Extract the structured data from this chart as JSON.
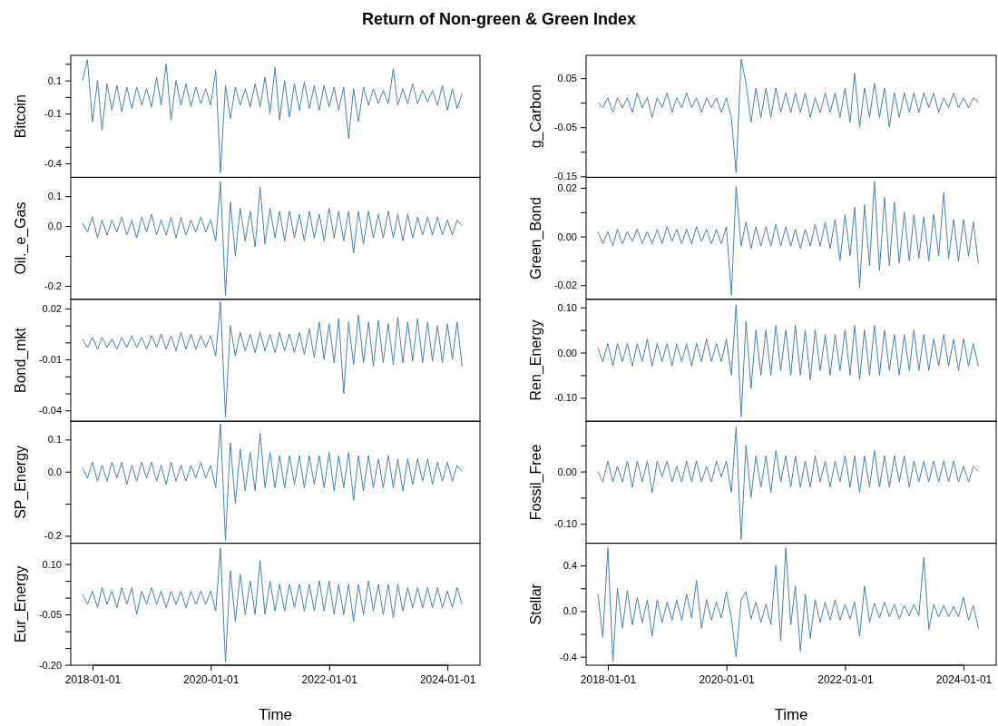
{
  "chart_data": [
    {
      "type": "line",
      "title": "Return of Non-green & Green Index",
      "ylabel": "Bitcoin",
      "tick_labels": "y",
      "xlim": [
        "2017-08-20",
        "2024-07-20"
      ],
      "ylim": [
        -0.484,
        0.251
      ],
      "yticks": [
        {
          "value": 0.2,
          "label": null
        },
        0.1,
        {
          "value": 0,
          "label": null
        },
        -0.1,
        {
          "value": -0.2,
          "label": null
        },
        {
          "value": -0.3,
          "label": null
        },
        -0.4
      ],
      "x": [
        "2017-11",
        "2017-12",
        "2018-01",
        "2018-02",
        "2018-03",
        "2018-04",
        "2018-05",
        "2018-06",
        "2018-07",
        "2018-08",
        "2018-09",
        "2018-10",
        "2018-11",
        "2018-12",
        "2019-01",
        "2019-02",
        "2019-03",
        "2019-04",
        "2019-05",
        "2019-06",
        "2019-07",
        "2019-08",
        "2019-09",
        "2019-10",
        "2019-11",
        "2019-12",
        "2020-01",
        "2020-02",
        "2020-03",
        "2020-04",
        "2020-05",
        "2020-06",
        "2020-07",
        "2020-08",
        "2020-09",
        "2020-10",
        "2020-11",
        "2020-12",
        "2021-01",
        "2021-02",
        "2021-03",
        "2021-04",
        "2021-05",
        "2021-06",
        "2021-07",
        "2021-08",
        "2021-09",
        "2021-10",
        "2021-11",
        "2021-12",
        "2022-01",
        "2022-02",
        "2022-03",
        "2022-04",
        "2022-05",
        "2022-06",
        "2022-07",
        "2022-08",
        "2022-09",
        "2022-10",
        "2022-11",
        "2022-12",
        "2023-01",
        "2023-02",
        "2023-03",
        "2023-04",
        "2023-05",
        "2023-06",
        "2023-07",
        "2023-08",
        "2023-09",
        "2023-10",
        "2023-11",
        "2023-12",
        "2024-01",
        "2024-02",
        "2024-03",
        "2024-04"
      ],
      "series": [
        {
          "color": "#4682b4",
          "values": [
            0.1,
            0.225,
            -0.15,
            0.1,
            -0.2,
            0.08,
            -0.08,
            0.07,
            -0.09,
            0.06,
            -0.07,
            0.06,
            -0.05,
            0.05,
            -0.06,
            0.12,
            -0.05,
            0.2,
            -0.14,
            0.1,
            -0.05,
            0.08,
            -0.06,
            0.06,
            -0.04,
            0.05,
            -0.05,
            0.16,
            -0.456,
            0.07,
            -0.13,
            0.06,
            -0.05,
            0.05,
            -0.06,
            0.08,
            -0.06,
            0.12,
            -0.1,
            0.18,
            -0.14,
            0.1,
            -0.12,
            0.08,
            -0.08,
            0.09,
            -0.07,
            0.07,
            -0.08,
            0.07,
            -0.06,
            0.06,
            -0.08,
            0.06,
            -0.25,
            0.05,
            -0.15,
            0.06,
            -0.05,
            0.05,
            -0.04,
            0.04,
            -0.04,
            0.17,
            -0.05,
            0.05,
            -0.04,
            0.08,
            -0.04,
            0.04,
            -0.03,
            0.04,
            -0.05,
            0.07,
            -0.08,
            0.05,
            -0.07,
            0.02
          ]
        }
      ]
    },
    {
      "type": "line",
      "ylabel": "g_Carbon",
      "tick_labels": "y",
      "xlim": [
        "2017-08-20",
        "2024-07-20"
      ],
      "ylim": [
        -0.152,
        0.0965
      ],
      "yticks": [
        0.05,
        {
          "value": 0,
          "label": null
        },
        -0.05,
        {
          "value": -0.1,
          "label": null
        },
        -0.15
      ],
      "x": [
        "2017-11",
        "2017-12",
        "2018-01",
        "2018-02",
        "2018-03",
        "2018-04",
        "2018-05",
        "2018-06",
        "2018-07",
        "2018-08",
        "2018-09",
        "2018-10",
        "2018-11",
        "2018-12",
        "2019-01",
        "2019-02",
        "2019-03",
        "2019-04",
        "2019-05",
        "2019-06",
        "2019-07",
        "2019-08",
        "2019-09",
        "2019-10",
        "2019-11",
        "2019-12",
        "2020-01",
        "2020-02",
        "2020-03",
        "2020-04",
        "2020-05",
        "2020-06",
        "2020-07",
        "2020-08",
        "2020-09",
        "2020-10",
        "2020-11",
        "2020-12",
        "2021-01",
        "2021-02",
        "2021-03",
        "2021-04",
        "2021-05",
        "2021-06",
        "2021-07",
        "2021-08",
        "2021-09",
        "2021-10",
        "2021-11",
        "2021-12",
        "2022-01",
        "2022-02",
        "2022-03",
        "2022-04",
        "2022-05",
        "2022-06",
        "2022-07",
        "2022-08",
        "2022-09",
        "2022-10",
        "2022-11",
        "2022-12",
        "2023-01",
        "2023-02",
        "2023-03",
        "2023-04",
        "2023-05",
        "2023-06",
        "2023-07",
        "2023-08",
        "2023-09",
        "2023-10",
        "2023-11",
        "2023-12",
        "2024-01",
        "2024-02",
        "2024-03",
        "2024-04"
      ],
      "series": [
        {
          "color": "#4682b4",
          "values": [
            0.0,
            -0.01,
            0.01,
            -0.02,
            0.01,
            -0.01,
            0.01,
            -0.02,
            0.02,
            -0.01,
            0.01,
            -0.03,
            0.01,
            -0.01,
            0.02,
            -0.02,
            0.01,
            -0.01,
            0.02,
            -0.01,
            0.01,
            -0.02,
            0.01,
            -0.01,
            0.01,
            -0.02,
            0.01,
            -0.03,
            -0.143,
            0.089,
            0.04,
            -0.04,
            0.03,
            -0.03,
            0.03,
            -0.03,
            0.03,
            -0.02,
            0.02,
            -0.02,
            0.02,
            -0.02,
            0.02,
            -0.03,
            0.01,
            -0.02,
            0.02,
            -0.02,
            0.02,
            -0.03,
            0.03,
            -0.04,
            0.06,
            -0.05,
            0.03,
            -0.03,
            0.04,
            -0.03,
            0.03,
            -0.05,
            0.02,
            -0.03,
            0.02,
            -0.02,
            0.02,
            -0.02,
            0.02,
            -0.01,
            0.02,
            -0.02,
            0.01,
            -0.01,
            0.02,
            -0.01,
            0.01,
            -0.01,
            0.01,
            0.0
          ]
        }
      ]
    },
    {
      "type": "line",
      "ylabel": "Oil._e_Gas",
      "tick_labels": "y",
      "xlim": [
        "2017-08-20",
        "2024-07-20"
      ],
      "ylim": [
        -0.245,
        0.163
      ],
      "yticks": [
        0.1,
        {
          "value": 0,
          "label": "0.0"
        },
        {
          "value": -0.1,
          "label": null
        },
        -0.2
      ],
      "x": [
        "2017-11",
        "2017-12",
        "2018-01",
        "2018-02",
        "2018-03",
        "2018-04",
        "2018-05",
        "2018-06",
        "2018-07",
        "2018-08",
        "2018-09",
        "2018-10",
        "2018-11",
        "2018-12",
        "2019-01",
        "2019-02",
        "2019-03",
        "2019-04",
        "2019-05",
        "2019-06",
        "2019-07",
        "2019-08",
        "2019-09",
        "2019-10",
        "2019-11",
        "2019-12",
        "2020-01",
        "2020-02",
        "2020-03",
        "2020-04",
        "2020-05",
        "2020-06",
        "2020-07",
        "2020-08",
        "2020-09",
        "2020-10",
        "2020-11",
        "2020-12",
        "2021-01",
        "2021-02",
        "2021-03",
        "2021-04",
        "2021-05",
        "2021-06",
        "2021-07",
        "2021-08",
        "2021-09",
        "2021-10",
        "2021-11",
        "2021-12",
        "2022-01",
        "2022-02",
        "2022-03",
        "2022-04",
        "2022-05",
        "2022-06",
        "2022-07",
        "2022-08",
        "2022-09",
        "2022-10",
        "2022-11",
        "2022-12",
        "2023-01",
        "2023-02",
        "2023-03",
        "2023-04",
        "2023-05",
        "2023-06",
        "2023-07",
        "2023-08",
        "2023-09",
        "2023-10",
        "2023-11",
        "2023-12",
        "2024-01",
        "2024-02",
        "2024-03",
        "2024-04"
      ],
      "series": [
        {
          "color": "#4682b4",
          "values": [
            0.01,
            -0.02,
            0.03,
            -0.04,
            0.02,
            -0.03,
            0.02,
            -0.02,
            0.03,
            -0.03,
            0.02,
            -0.04,
            0.03,
            -0.02,
            0.04,
            -0.03,
            0.02,
            -0.03,
            0.03,
            -0.04,
            0.03,
            -0.03,
            0.02,
            -0.02,
            0.03,
            -0.02,
            0.02,
            -0.05,
            0.149,
            -0.232,
            0.08,
            -0.1,
            0.06,
            -0.05,
            0.05,
            -0.07,
            0.13,
            -0.06,
            0.06,
            -0.04,
            0.05,
            -0.05,
            0.05,
            -0.04,
            0.04,
            -0.05,
            0.05,
            -0.04,
            0.04,
            -0.05,
            0.06,
            -0.04,
            0.05,
            -0.05,
            0.05,
            -0.09,
            0.05,
            -0.06,
            0.05,
            -0.04,
            0.04,
            -0.04,
            0.05,
            -0.04,
            0.04,
            -0.05,
            0.04,
            -0.04,
            0.03,
            -0.03,
            0.03,
            -0.03,
            0.03,
            -0.03,
            0.02,
            -0.03,
            0.02,
            0.0
          ]
        }
      ]
    },
    {
      "type": "line",
      "ylabel": "Green_Bond",
      "tick_labels": "y",
      "xlim": [
        "2017-08-20",
        "2024-07-20"
      ],
      "ylim": [
        -0.0258,
        0.0243
      ],
      "yticks": [
        {
          "value": 0.02,
          "label": "0.02"
        },
        {
          "value": 0.01,
          "label": null
        },
        {
          "value": 0,
          "label": "0.00"
        },
        {
          "value": -0.01,
          "label": null
        },
        {
          "value": -0.02,
          "label": "-0.02"
        }
      ],
      "x": [
        "2017-11",
        "2017-12",
        "2018-01",
        "2018-02",
        "2018-03",
        "2018-04",
        "2018-05",
        "2018-06",
        "2018-07",
        "2018-08",
        "2018-09",
        "2018-10",
        "2018-11",
        "2018-12",
        "2019-01",
        "2019-02",
        "2019-03",
        "2019-04",
        "2019-05",
        "2019-06",
        "2019-07",
        "2019-08",
        "2019-09",
        "2019-10",
        "2019-11",
        "2019-12",
        "2020-01",
        "2020-02",
        "2020-03",
        "2020-04",
        "2020-05",
        "2020-06",
        "2020-07",
        "2020-08",
        "2020-09",
        "2020-10",
        "2020-11",
        "2020-12",
        "2021-01",
        "2021-02",
        "2021-03",
        "2021-04",
        "2021-05",
        "2021-06",
        "2021-07",
        "2021-08",
        "2021-09",
        "2021-10",
        "2021-11",
        "2021-12",
        "2022-01",
        "2022-02",
        "2022-03",
        "2022-04",
        "2022-05",
        "2022-06",
        "2022-07",
        "2022-08",
        "2022-09",
        "2022-10",
        "2022-11",
        "2022-12",
        "2023-01",
        "2023-02",
        "2023-03",
        "2023-04",
        "2023-05",
        "2023-06",
        "2023-07",
        "2023-08",
        "2023-09",
        "2023-10",
        "2023-11",
        "2023-12",
        "2024-01",
        "2024-02",
        "2024-03",
        "2024-04"
      ],
      "series": [
        {
          "color": "#4682b4",
          "values": [
            0.002,
            -0.003,
            0.002,
            -0.004,
            0.003,
            -0.003,
            0.002,
            -0.002,
            0.003,
            -0.003,
            0.002,
            -0.003,
            0.003,
            -0.003,
            0.004,
            -0.002,
            0.003,
            -0.003,
            0.003,
            -0.003,
            0.004,
            -0.002,
            0.003,
            -0.003,
            0.003,
            -0.003,
            0.004,
            -0.0241,
            0.0205,
            -0.004,
            0.006,
            -0.005,
            0.004,
            -0.004,
            0.004,
            -0.004,
            0.005,
            -0.004,
            0.004,
            -0.004,
            0.003,
            -0.005,
            0.003,
            -0.004,
            0.005,
            -0.004,
            0.006,
            -0.005,
            0.007,
            -0.01,
            0.009,
            -0.008,
            0.012,
            -0.021,
            0.013,
            -0.012,
            0.0226,
            -0.014,
            0.016,
            -0.012,
            0.014,
            -0.011,
            0.01,
            -0.01,
            0.009,
            -0.009,
            0.008,
            -0.01,
            0.009,
            -0.008,
            0.018,
            -0.009,
            0.007,
            -0.01,
            0.007,
            -0.008,
            0.006,
            -0.011
          ]
        }
      ]
    },
    {
      "type": "line",
      "ylabel": "Bond_mkt",
      "tick_labels": "y",
      "xlim": [
        "2017-08-20",
        "2024-07-20"
      ],
      "ylim": [
        -0.0464,
        0.0254
      ],
      "yticks": [
        0.02,
        {
          "value": 0.01,
          "label": null
        },
        {
          "value": 0,
          "label": null
        },
        -0.01,
        {
          "value": -0.02,
          "label": null
        },
        {
          "value": -0.03,
          "label": null
        },
        -0.04
      ],
      "x": [
        "2017-11",
        "2017-12",
        "2018-01",
        "2018-02",
        "2018-03",
        "2018-04",
        "2018-05",
        "2018-06",
        "2018-07",
        "2018-08",
        "2018-09",
        "2018-10",
        "2018-11",
        "2018-12",
        "2019-01",
        "2019-02",
        "2019-03",
        "2019-04",
        "2019-05",
        "2019-06",
        "2019-07",
        "2019-08",
        "2019-09",
        "2019-10",
        "2019-11",
        "2019-12",
        "2020-01",
        "2020-02",
        "2020-03",
        "2020-04",
        "2020-05",
        "2020-06",
        "2020-07",
        "2020-08",
        "2020-09",
        "2020-10",
        "2020-11",
        "2020-12",
        "2021-01",
        "2021-02",
        "2021-03",
        "2021-04",
        "2021-05",
        "2021-06",
        "2021-07",
        "2021-08",
        "2021-09",
        "2021-10",
        "2021-11",
        "2021-12",
        "2022-01",
        "2022-02",
        "2022-03",
        "2022-04",
        "2022-05",
        "2022-06",
        "2022-07",
        "2022-08",
        "2022-09",
        "2022-10",
        "2022-11",
        "2022-12",
        "2023-01",
        "2023-02",
        "2023-03",
        "2023-04",
        "2023-05",
        "2023-06",
        "2023-07",
        "2023-08",
        "2023-09",
        "2023-10",
        "2023-11",
        "2023-12",
        "2024-01",
        "2024-02",
        "2024-03",
        "2024-04"
      ],
      "series": [
        {
          "color": "#4682b4",
          "values": [
            0.002,
            -0.003,
            0.003,
            -0.004,
            0.003,
            -0.003,
            0.002,
            -0.004,
            0.003,
            -0.003,
            0.004,
            -0.003,
            0.003,
            -0.004,
            0.004,
            -0.003,
            0.005,
            -0.004,
            0.004,
            -0.005,
            0.006,
            -0.004,
            0.005,
            -0.004,
            0.004,
            -0.003,
            0.004,
            -0.008,
            0.024,
            -0.044,
            0.01,
            -0.008,
            0.006,
            -0.005,
            0.005,
            -0.006,
            0.006,
            -0.005,
            0.005,
            -0.006,
            0.006,
            -0.005,
            0.005,
            -0.006,
            0.006,
            -0.007,
            0.008,
            -0.009,
            0.012,
            -0.01,
            0.011,
            -0.012,
            0.014,
            -0.03,
            0.012,
            -0.013,
            0.016,
            -0.012,
            0.012,
            -0.014,
            0.013,
            -0.012,
            0.011,
            -0.013,
            0.015,
            -0.012,
            0.012,
            -0.011,
            0.014,
            -0.012,
            0.012,
            -0.011,
            0.01,
            -0.012,
            0.011,
            -0.01,
            0.012,
            -0.014
          ]
        }
      ]
    },
    {
      "type": "line",
      "ylabel": "Ren_Energy",
      "tick_labels": "y",
      "xlim": [
        "2017-08-20",
        "2024-07-20"
      ],
      "ylim": [
        -0.152,
        0.118
      ],
      "yticks": [
        {
          "value": 0.1,
          "label": "0.10"
        },
        {
          "value": 0.05,
          "label": null
        },
        {
          "value": 0,
          "label": "0.00"
        },
        {
          "value": -0.05,
          "label": null
        },
        {
          "value": -0.1,
          "label": "-0.10"
        }
      ],
      "x": [
        "2017-11",
        "2017-12",
        "2018-01",
        "2018-02",
        "2018-03",
        "2018-04",
        "2018-05",
        "2018-06",
        "2018-07",
        "2018-08",
        "2018-09",
        "2018-10",
        "2018-11",
        "2018-12",
        "2019-01",
        "2019-02",
        "2019-03",
        "2019-04",
        "2019-05",
        "2019-06",
        "2019-07",
        "2019-08",
        "2019-09",
        "2019-10",
        "2019-11",
        "2019-12",
        "2020-01",
        "2020-02",
        "2020-03",
        "2020-04",
        "2020-05",
        "2020-06",
        "2020-07",
        "2020-08",
        "2020-09",
        "2020-10",
        "2020-11",
        "2020-12",
        "2021-01",
        "2021-02",
        "2021-03",
        "2021-04",
        "2021-05",
        "2021-06",
        "2021-07",
        "2021-08",
        "2021-09",
        "2021-10",
        "2021-11",
        "2021-12",
        "2022-01",
        "2022-02",
        "2022-03",
        "2022-04",
        "2022-05",
        "2022-06",
        "2022-07",
        "2022-08",
        "2022-09",
        "2022-10",
        "2022-11",
        "2022-12",
        "2023-01",
        "2023-02",
        "2023-03",
        "2023-04",
        "2023-05",
        "2023-06",
        "2023-07",
        "2023-08",
        "2023-09",
        "2023-10",
        "2023-11",
        "2023-12",
        "2024-01",
        "2024-02",
        "2024-03",
        "2024-04"
      ],
      "series": [
        {
          "color": "#4682b4",
          "values": [
            0.01,
            -0.02,
            0.02,
            -0.03,
            0.02,
            -0.02,
            0.02,
            -0.03,
            0.02,
            -0.02,
            0.03,
            -0.03,
            0.02,
            -0.02,
            0.02,
            -0.03,
            0.02,
            -0.02,
            0.02,
            -0.03,
            0.02,
            -0.02,
            0.03,
            -0.02,
            0.02,
            -0.02,
            0.03,
            -0.05,
            0.106,
            -0.142,
            0.07,
            -0.08,
            0.05,
            -0.05,
            0.05,
            -0.05,
            0.06,
            -0.04,
            0.05,
            -0.05,
            0.06,
            -0.05,
            0.05,
            -0.06,
            0.05,
            -0.04,
            0.04,
            -0.05,
            0.04,
            -0.04,
            0.05,
            -0.05,
            0.06,
            -0.06,
            0.05,
            -0.05,
            0.06,
            -0.05,
            0.05,
            -0.04,
            0.04,
            -0.05,
            0.04,
            -0.04,
            0.05,
            -0.04,
            0.04,
            -0.04,
            0.03,
            -0.03,
            0.04,
            -0.03,
            0.03,
            -0.04,
            0.03,
            -0.03,
            0.02,
            -0.03
          ]
        }
      ]
    },
    {
      "type": "line",
      "ylabel": "SP_Energy",
      "tick_labels": "y",
      "xlim": [
        "2017-08-20",
        "2024-07-20"
      ],
      "ylim": [
        -0.223,
        0.157
      ],
      "yticks": [
        0.1,
        {
          "value": 0,
          "label": "0.0"
        },
        {
          "value": -0.1,
          "label": null
        },
        -0.2
      ],
      "x": [
        "2017-11",
        "2017-12",
        "2018-01",
        "2018-02",
        "2018-03",
        "2018-04",
        "2018-05",
        "2018-06",
        "2018-07",
        "2018-08",
        "2018-09",
        "2018-10",
        "2018-11",
        "2018-12",
        "2019-01",
        "2019-02",
        "2019-03",
        "2019-04",
        "2019-05",
        "2019-06",
        "2019-07",
        "2019-08",
        "2019-09",
        "2019-10",
        "2019-11",
        "2019-12",
        "2020-01",
        "2020-02",
        "2020-03",
        "2020-04",
        "2020-05",
        "2020-06",
        "2020-07",
        "2020-08",
        "2020-09",
        "2020-10",
        "2020-11",
        "2020-12",
        "2021-01",
        "2021-02",
        "2021-03",
        "2021-04",
        "2021-05",
        "2021-06",
        "2021-07",
        "2021-08",
        "2021-09",
        "2021-10",
        "2021-11",
        "2021-12",
        "2022-01",
        "2022-02",
        "2022-03",
        "2022-04",
        "2022-05",
        "2022-06",
        "2022-07",
        "2022-08",
        "2022-09",
        "2022-10",
        "2022-11",
        "2022-12",
        "2023-01",
        "2023-02",
        "2023-03",
        "2023-04",
        "2023-05",
        "2023-06",
        "2023-07",
        "2023-08",
        "2023-09",
        "2023-10",
        "2023-11",
        "2023-12",
        "2024-01",
        "2024-02",
        "2024-03",
        "2024-04"
      ],
      "series": [
        {
          "color": "#4682b4",
          "values": [
            0.01,
            -0.02,
            0.03,
            -0.03,
            0.02,
            -0.03,
            0.03,
            -0.02,
            0.03,
            -0.04,
            0.02,
            -0.03,
            0.03,
            -0.02,
            0.03,
            -0.03,
            0.02,
            -0.04,
            0.03,
            -0.03,
            0.02,
            -0.03,
            0.02,
            -0.02,
            0.03,
            -0.02,
            0.02,
            -0.05,
            0.149,
            -0.214,
            0.09,
            -0.1,
            0.07,
            -0.06,
            0.06,
            -0.06,
            0.12,
            -0.05,
            0.06,
            -0.05,
            0.05,
            -0.05,
            0.05,
            -0.04,
            0.05,
            -0.05,
            0.05,
            -0.04,
            0.05,
            -0.05,
            0.06,
            -0.06,
            0.05,
            -0.05,
            0.06,
            -0.09,
            0.05,
            -0.06,
            0.05,
            -0.05,
            0.04,
            -0.05,
            0.05,
            -0.05,
            0.04,
            -0.06,
            0.04,
            -0.04,
            0.04,
            -0.03,
            0.04,
            -0.04,
            0.03,
            -0.03,
            0.03,
            -0.03,
            0.02,
            0.0
          ]
        }
      ]
    },
    {
      "type": "line",
      "ylabel": "Fossil_Free",
      "tick_labels": "y",
      "xlim": [
        "2017-08-20",
        "2024-07-20"
      ],
      "ylim": [
        -0.137,
        0.096
      ],
      "yticks": [
        {
          "value": 0.05,
          "label": null
        },
        {
          "value": 0,
          "label": "0.00"
        },
        {
          "value": -0.05,
          "label": null
        },
        {
          "value": -0.1,
          "label": "-0.10"
        }
      ],
      "x": [
        "2017-11",
        "2017-12",
        "2018-01",
        "2018-02",
        "2018-03",
        "2018-04",
        "2018-05",
        "2018-06",
        "2018-07",
        "2018-08",
        "2018-09",
        "2018-10",
        "2018-11",
        "2018-12",
        "2019-01",
        "2019-02",
        "2019-03",
        "2019-04",
        "2019-05",
        "2019-06",
        "2019-07",
        "2019-08",
        "2019-09",
        "2019-10",
        "2019-11",
        "2019-12",
        "2020-01",
        "2020-02",
        "2020-03",
        "2020-04",
        "2020-05",
        "2020-06",
        "2020-07",
        "2020-08",
        "2020-09",
        "2020-10",
        "2020-11",
        "2020-12",
        "2021-01",
        "2021-02",
        "2021-03",
        "2021-04",
        "2021-05",
        "2021-06",
        "2021-07",
        "2021-08",
        "2021-09",
        "2021-10",
        "2021-11",
        "2021-12",
        "2022-01",
        "2022-02",
        "2022-03",
        "2022-04",
        "2022-05",
        "2022-06",
        "2022-07",
        "2022-08",
        "2022-09",
        "2022-10",
        "2022-11",
        "2022-12",
        "2023-01",
        "2023-02",
        "2023-03",
        "2023-04",
        "2023-05",
        "2023-06",
        "2023-07",
        "2023-08",
        "2023-09",
        "2023-10",
        "2023-11",
        "2023-12",
        "2024-01",
        "2024-02",
        "2024-03",
        "2024-04"
      ],
      "series": [
        {
          "color": "#4682b4",
          "values": [
            0.0,
            -0.02,
            0.02,
            -0.02,
            0.01,
            -0.02,
            0.02,
            -0.03,
            0.02,
            -0.02,
            0.02,
            -0.04,
            0.02,
            -0.01,
            0.02,
            -0.02,
            0.01,
            -0.02,
            0.02,
            -0.02,
            0.02,
            -0.02,
            0.01,
            -0.02,
            0.02,
            -0.01,
            0.02,
            -0.04,
            0.085,
            -0.13,
            0.05,
            -0.05,
            0.03,
            -0.03,
            0.03,
            -0.04,
            0.04,
            -0.02,
            0.03,
            -0.03,
            0.03,
            -0.03,
            0.02,
            -0.03,
            0.03,
            -0.02,
            0.02,
            -0.03,
            0.02,
            -0.02,
            0.03,
            -0.03,
            0.03,
            -0.04,
            0.03,
            -0.03,
            0.04,
            -0.03,
            0.03,
            -0.03,
            0.03,
            -0.02,
            0.03,
            -0.03,
            0.02,
            -0.02,
            0.02,
            -0.02,
            0.02,
            -0.02,
            0.02,
            -0.02,
            0.02,
            -0.02,
            0.01,
            -0.02,
            0.01,
            0.0
          ]
        }
      ]
    },
    {
      "type": "line",
      "xlabel": "Time",
      "ylabel": "Eur_Energy",
      "xlim": [
        "2017-08-20",
        "2024-07-20"
      ],
      "xticks": [
        "2018-01-01",
        "2020-01-01",
        "2022-01-01",
        "2024-01-01"
      ],
      "ylim": [
        -0.201,
        0.162
      ],
      "yticks": [
        {
          "value": 0.1,
          "label": "0.10"
        },
        {
          "value": 0.05,
          "label": null
        },
        {
          "value": 0,
          "label": null
        },
        {
          "value": -0.05,
          "label": "-0.05"
        },
        {
          "value": -0.1,
          "label": null
        },
        {
          "value": -0.15,
          "label": null
        },
        {
          "value": -0.2,
          "label": "-0.20"
        }
      ],
      "x": [
        "2017-11",
        "2017-12",
        "2018-01",
        "2018-02",
        "2018-03",
        "2018-04",
        "2018-05",
        "2018-06",
        "2018-07",
        "2018-08",
        "2018-09",
        "2018-10",
        "2018-11",
        "2018-12",
        "2019-01",
        "2019-02",
        "2019-03",
        "2019-04",
        "2019-05",
        "2019-06",
        "2019-07",
        "2019-08",
        "2019-09",
        "2019-10",
        "2019-11",
        "2019-12",
        "2020-01",
        "2020-02",
        "2020-03",
        "2020-04",
        "2020-05",
        "2020-06",
        "2020-07",
        "2020-08",
        "2020-09",
        "2020-10",
        "2020-11",
        "2020-12",
        "2021-01",
        "2021-02",
        "2021-03",
        "2021-04",
        "2021-05",
        "2021-06",
        "2021-07",
        "2021-08",
        "2021-09",
        "2021-10",
        "2021-11",
        "2021-12",
        "2022-01",
        "2022-02",
        "2022-03",
        "2022-04",
        "2022-05",
        "2022-06",
        "2022-07",
        "2022-08",
        "2022-09",
        "2022-10",
        "2022-11",
        "2022-12",
        "2023-01",
        "2023-02",
        "2023-03",
        "2023-04",
        "2023-05",
        "2023-06",
        "2023-07",
        "2023-08",
        "2023-09",
        "2023-10",
        "2023-11",
        "2023-12",
        "2024-01",
        "2024-02",
        "2024-03",
        "2024-04"
      ],
      "series": [
        {
          "color": "#4682b4",
          "values": [
            0.01,
            -0.02,
            0.02,
            -0.03,
            0.03,
            -0.02,
            0.02,
            -0.03,
            0.03,
            -0.02,
            0.03,
            -0.05,
            0.02,
            -0.02,
            0.03,
            -0.02,
            0.02,
            -0.03,
            0.02,
            -0.02,
            0.02,
            -0.03,
            0.02,
            -0.02,
            0.02,
            -0.02,
            0.02,
            -0.04,
            0.148,
            -0.192,
            0.08,
            -0.07,
            0.07,
            -0.05,
            0.05,
            -0.05,
            0.11,
            -0.05,
            0.05,
            -0.04,
            0.04,
            -0.04,
            0.04,
            -0.03,
            0.04,
            -0.04,
            0.04,
            -0.04,
            0.05,
            -0.04,
            0.05,
            -0.05,
            0.04,
            -0.05,
            0.04,
            -0.07,
            0.04,
            -0.05,
            0.05,
            -0.04,
            0.04,
            -0.05,
            0.04,
            -0.06,
            0.04,
            -0.04,
            0.03,
            -0.03,
            0.03,
            -0.03,
            0.03,
            -0.03,
            0.03,
            -0.03,
            0.02,
            -0.03,
            0.03,
            -0.02
          ]
        }
      ]
    },
    {
      "type": "line",
      "xlabel": "Time",
      "ylabel": "Stellar",
      "xlim": [
        "2017-08-20",
        "2024-07-20"
      ],
      "xticks": [
        "2018-01-01",
        "2020-01-01",
        "2022-01-01",
        "2024-01-01"
      ],
      "ylim": [
        -0.474,
        0.595
      ],
      "yticks": [
        0.4,
        {
          "value": 0.2,
          "label": null
        },
        {
          "value": 0,
          "label": "0.0"
        },
        {
          "value": -0.2,
          "label": null
        },
        -0.4
      ],
      "x": [
        "2017-11",
        "2017-12",
        "2018-01",
        "2018-02",
        "2018-03",
        "2018-04",
        "2018-05",
        "2018-06",
        "2018-07",
        "2018-08",
        "2018-09",
        "2018-10",
        "2018-11",
        "2018-12",
        "2019-01",
        "2019-02",
        "2019-03",
        "2019-04",
        "2019-05",
        "2019-06",
        "2019-07",
        "2019-08",
        "2019-09",
        "2019-10",
        "2019-11",
        "2019-12",
        "2020-01",
        "2020-02",
        "2020-03",
        "2020-04",
        "2020-05",
        "2020-06",
        "2020-07",
        "2020-08",
        "2020-09",
        "2020-10",
        "2020-11",
        "2020-12",
        "2021-01",
        "2021-02",
        "2021-03",
        "2021-04",
        "2021-05",
        "2021-06",
        "2021-07",
        "2021-08",
        "2021-09",
        "2021-10",
        "2021-11",
        "2021-12",
        "2022-01",
        "2022-02",
        "2022-03",
        "2022-04",
        "2022-05",
        "2022-06",
        "2022-07",
        "2022-08",
        "2022-09",
        "2022-10",
        "2022-11",
        "2022-12",
        "2023-01",
        "2023-02",
        "2023-03",
        "2023-04",
        "2023-05",
        "2023-06",
        "2023-07",
        "2023-08",
        "2023-09",
        "2023-10",
        "2023-11",
        "2023-12",
        "2024-01",
        "2024-02",
        "2024-03",
        "2024-04"
      ],
      "series": [
        {
          "color": "#4682b4",
          "values": [
            0.15,
            -0.23,
            0.557,
            -0.44,
            0.2,
            -0.15,
            0.18,
            -0.12,
            0.12,
            -0.1,
            0.1,
            -0.22,
            0.1,
            -0.1,
            0.08,
            -0.08,
            0.1,
            -0.08,
            0.15,
            -0.06,
            0.27,
            -0.15,
            0.1,
            -0.08,
            0.08,
            -0.06,
            0.17,
            -0.06,
            -0.4,
            0.1,
            0.17,
            -0.07,
            0.08,
            -0.1,
            0.06,
            -0.12,
            0.4,
            -0.26,
            0.557,
            -0.12,
            0.22,
            -0.35,
            0.15,
            -0.24,
            0.1,
            -0.1,
            0.08,
            -0.08,
            0.1,
            -0.08,
            0.06,
            -0.07,
            0.08,
            -0.22,
            0.22,
            -0.1,
            0.07,
            -0.06,
            0.08,
            -0.05,
            0.06,
            -0.07,
            0.05,
            -0.04,
            0.06,
            -0.04,
            0.47,
            -0.16,
            0.06,
            -0.05,
            0.05,
            -0.05,
            0.04,
            -0.05,
            0.12,
            -0.08,
            0.05,
            -0.15
          ]
        }
      ]
    }
  ]
}
